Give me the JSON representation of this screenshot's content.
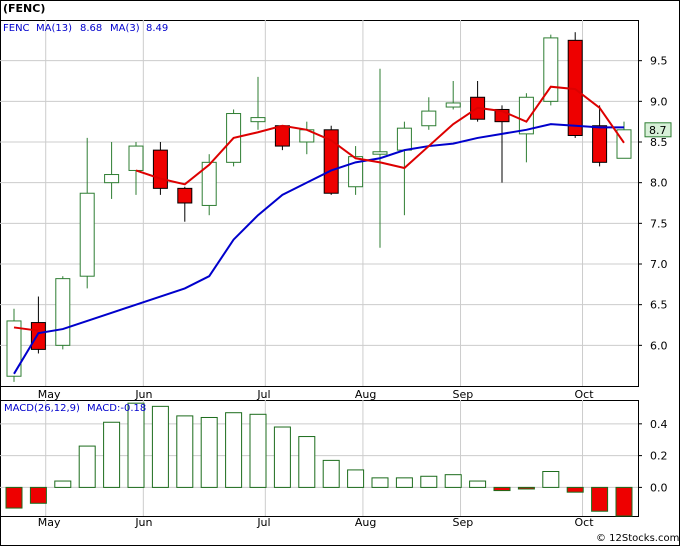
{
  "symbol_label": "(FENC)",
  "watermark": "© 12Stocks.com",
  "colors": {
    "up_candle_stroke": "#2e7d32",
    "down_candle_fill": "#ee0000",
    "ma13": "#0000cc",
    "ma3": "#dd0000",
    "macd_bar_stroke": "#1b6b1b",
    "macd_bar_neg_fill": "#ee0000",
    "grid": "#cccccc",
    "price_tag_bg": "#d8f0d8"
  },
  "chart_data": [
    {
      "type": "candlestick",
      "legend": {
        "ticker": "FENC",
        "ma13_label": "MA(13)",
        "ma13_value": "8.68",
        "ma3_label": "MA(3)",
        "ma3_value": "8.49"
      },
      "last_price_tag": "8.7",
      "ylim": [
        5.5,
        10.0
      ],
      "y_ticks": [
        "6.0",
        "6.5",
        "7.0",
        "7.5",
        "8.0",
        "8.5",
        "9.0",
        "9.5"
      ],
      "x_tick_labels": [
        {
          "label": "May",
          "index": 1.3
        },
        {
          "label": "Jun",
          "index": 5.3
        },
        {
          "label": "Jul",
          "index": 10.3
        },
        {
          "label": "Aug",
          "index": 14.3
        },
        {
          "label": "Sep",
          "index": 18.3
        },
        {
          "label": "Oct",
          "index": 23.3
        }
      ],
      "candles": [
        {
          "open": 5.62,
          "high": 6.45,
          "low": 5.55,
          "close": 6.3
        },
        {
          "open": 6.28,
          "high": 6.6,
          "low": 5.9,
          "close": 5.95
        },
        {
          "open": 6.0,
          "high": 6.85,
          "low": 5.95,
          "close": 6.82
        },
        {
          "open": 6.85,
          "high": 8.55,
          "low": 6.7,
          "close": 7.87
        },
        {
          "open": 8.0,
          "high": 8.5,
          "low": 7.8,
          "close": 8.1
        },
        {
          "open": 8.15,
          "high": 8.5,
          "low": 7.85,
          "close": 8.45
        },
        {
          "open": 8.4,
          "high": 8.5,
          "low": 7.85,
          "close": 7.93
        },
        {
          "open": 7.93,
          "high": 7.95,
          "low": 7.52,
          "close": 7.75
        },
        {
          "open": 7.72,
          "high": 8.35,
          "low": 7.6,
          "close": 8.25
        },
        {
          "open": 8.25,
          "high": 8.9,
          "low": 8.2,
          "close": 8.85
        },
        {
          "open": 8.75,
          "high": 9.3,
          "low": 8.65,
          "close": 8.8
        },
        {
          "open": 8.7,
          "high": 8.7,
          "low": 8.4,
          "close": 8.45
        },
        {
          "open": 8.5,
          "high": 8.75,
          "low": 8.35,
          "close": 8.65
        },
        {
          "open": 8.65,
          "high": 8.7,
          "low": 7.85,
          "close": 7.87
        },
        {
          "open": 7.95,
          "high": 8.45,
          "low": 7.85,
          "close": 8.32
        },
        {
          "open": 8.35,
          "high": 9.4,
          "low": 7.2,
          "close": 8.38
        },
        {
          "open": 8.4,
          "high": 8.75,
          "low": 7.6,
          "close": 8.67
        },
        {
          "open": 8.7,
          "high": 9.05,
          "low": 8.65,
          "close": 8.88
        },
        {
          "open": 8.93,
          "high": 9.25,
          "low": 8.9,
          "close": 8.98
        },
        {
          "open": 9.05,
          "high": 9.25,
          "low": 8.75,
          "close": 8.78
        },
        {
          "open": 8.9,
          "high": 8.95,
          "low": 8.0,
          "close": 8.75
        },
        {
          "open": 8.6,
          "high": 9.1,
          "low": 8.25,
          "close": 9.05
        },
        {
          "open": 9.0,
          "high": 9.82,
          "low": 8.95,
          "close": 9.78
        },
        {
          "open": 9.75,
          "high": 9.85,
          "low": 8.55,
          "close": 8.58
        },
        {
          "open": 8.7,
          "high": 8.95,
          "low": 8.2,
          "close": 8.25
        },
        {
          "open": 8.3,
          "high": 8.75,
          "low": 8.3,
          "close": 8.65
        }
      ],
      "series": [
        {
          "name": "MA(13)",
          "values": [
            5.65,
            6.15,
            6.2,
            6.3,
            6.4,
            6.5,
            6.6,
            6.7,
            6.85,
            7.3,
            7.6,
            7.85,
            8.0,
            8.15,
            8.25,
            8.3,
            8.4,
            8.45,
            8.48,
            8.55,
            8.6,
            8.65,
            8.72,
            8.7,
            8.68,
            8.68
          ]
        },
        {
          "name": "MA(3)",
          "values": [
            6.22,
            6.18,
            null,
            null,
            null,
            8.15,
            8.05,
            7.98,
            8.22,
            8.55,
            8.62,
            8.7,
            8.65,
            8.52,
            8.3,
            8.25,
            8.18,
            8.45,
            8.72,
            8.92,
            8.88,
            8.75,
            9.18,
            9.15,
            8.92,
            8.49
          ]
        }
      ],
      "grid": true
    },
    {
      "type": "bar",
      "legend": {
        "name_label": "MACD(26,12,9)",
        "value_label": "MACD:-0.18"
      },
      "ylim": [
        -0.18,
        0.55
      ],
      "y_ticks": [
        "0.0",
        "0.2",
        "0.4"
      ],
      "values": [
        -0.13,
        -0.1,
        0.04,
        0.26,
        0.41,
        0.53,
        0.51,
        0.45,
        0.44,
        0.47,
        0.46,
        0.38,
        0.32,
        0.17,
        0.11,
        0.06,
        0.06,
        0.07,
        0.08,
        0.04,
        -0.02,
        -0.01,
        0.1,
        -0.03,
        -0.15,
        -0.18
      ],
      "x_tick_labels": [
        {
          "label": "May",
          "index": 1.3
        },
        {
          "label": "Jun",
          "index": 5.3
        },
        {
          "label": "Jul",
          "index": 10.3
        },
        {
          "label": "Aug",
          "index": 14.3
        },
        {
          "label": "Sep",
          "index": 18.3
        },
        {
          "label": "Oct",
          "index": 23.3
        }
      ],
      "grid": true
    }
  ]
}
